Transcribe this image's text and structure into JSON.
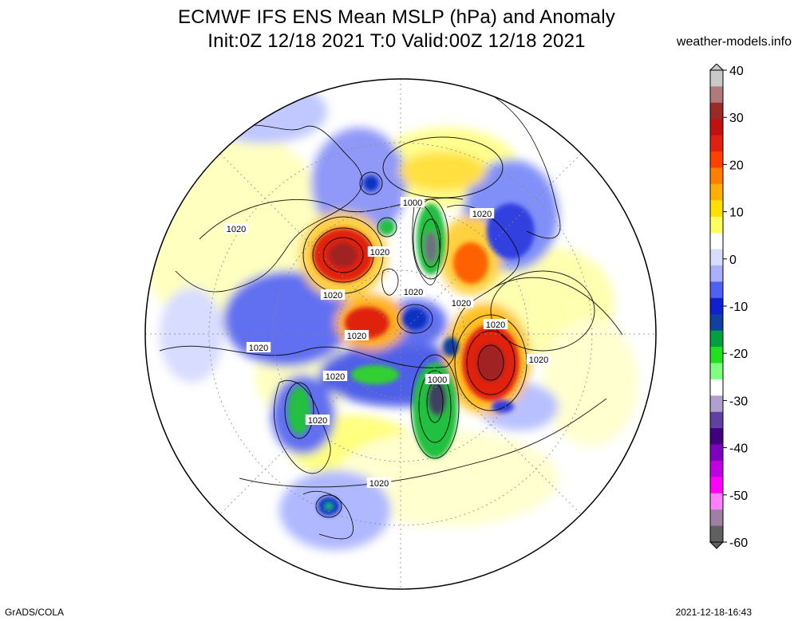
{
  "title_line1": "ECMWF IFS ENS Mean MSLP (hPa) and Anomaly",
  "title_line2": "Init:0Z 12/18 2021  T:0 Valid:00Z 12/18 2021",
  "site": "weather-models.info",
  "footer_left": "GrADS/COLA",
  "footer_right": "2021-12-18-16:43",
  "colorbar": {
    "labels": [
      "40",
      "30",
      "20",
      "10",
      "0",
      "-10",
      "-20",
      "-30",
      "-40",
      "-50",
      "-60"
    ],
    "colors": [
      "#c9c9c9",
      "#b07a7a",
      "#9a2a2a",
      "#c01010",
      "#e02010",
      "#ff4000",
      "#ff8000",
      "#ffb000",
      "#ffe000",
      "#ffff60",
      "#ffffff",
      "#d8dcff",
      "#a8b0ff",
      "#5060f0",
      "#1020d0",
      "#1040a0",
      "#00a040",
      "#20e020",
      "#80ff80",
      "#ffffff",
      "#b0a0d0",
      "#6040a0",
      "#400080",
      "#8000c0",
      "#c000e0",
      "#ff00ff",
      "#ff80ff",
      "#a080a0",
      "#606060"
    ]
  },
  "contour_labels": [
    "1000",
    "1020",
    "1020",
    "1020",
    "1020",
    "1020",
    "1020",
    "1020",
    "1020",
    "1020",
    "1020",
    "1000",
    "1020",
    "1020",
    "1020"
  ]
}
